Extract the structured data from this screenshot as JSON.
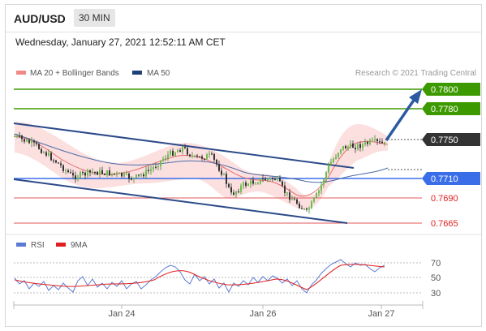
{
  "header": {
    "symbol": "AUD/USD",
    "timeframe": "30 MIN"
  },
  "datetime": "Wednesday, January 27, 2021 12:52:11 AM CET",
  "legend": {
    "items": [
      {
        "label": "MA 20 + Bollinger Bands",
        "color": "#f08a8a"
      },
      {
        "label": "MA 50",
        "color": "#1f3f7a"
      }
    ],
    "copyright": "Research © 2021 Trading Central"
  },
  "rsi_legend": {
    "items": [
      {
        "label": "RSI",
        "color": "#5b7bd5"
      },
      {
        "label": "9MA",
        "color": "#e02020"
      }
    ]
  },
  "colors": {
    "resistance": "#3c9a00",
    "support": "#3a6ee8",
    "target_red": "#e05858",
    "channel": "#2c4a8a",
    "current": "#333333"
  },
  "price_levels": [
    {
      "label": "0.7800",
      "kind": "resistance"
    },
    {
      "label": "0.7780",
      "kind": "resistance"
    },
    {
      "label": "0.7750",
      "kind": "current"
    },
    {
      "label": "0.7710",
      "kind": "support"
    },
    {
      "label": "0.7690",
      "kind": "target"
    },
    {
      "label": "0.7665",
      "kind": "target"
    }
  ],
  "rsi_scale": [
    "70",
    "50",
    "30"
  ],
  "x_axis": [
    "Jan 24",
    "Jan 26",
    "Jan 27"
  ]
}
